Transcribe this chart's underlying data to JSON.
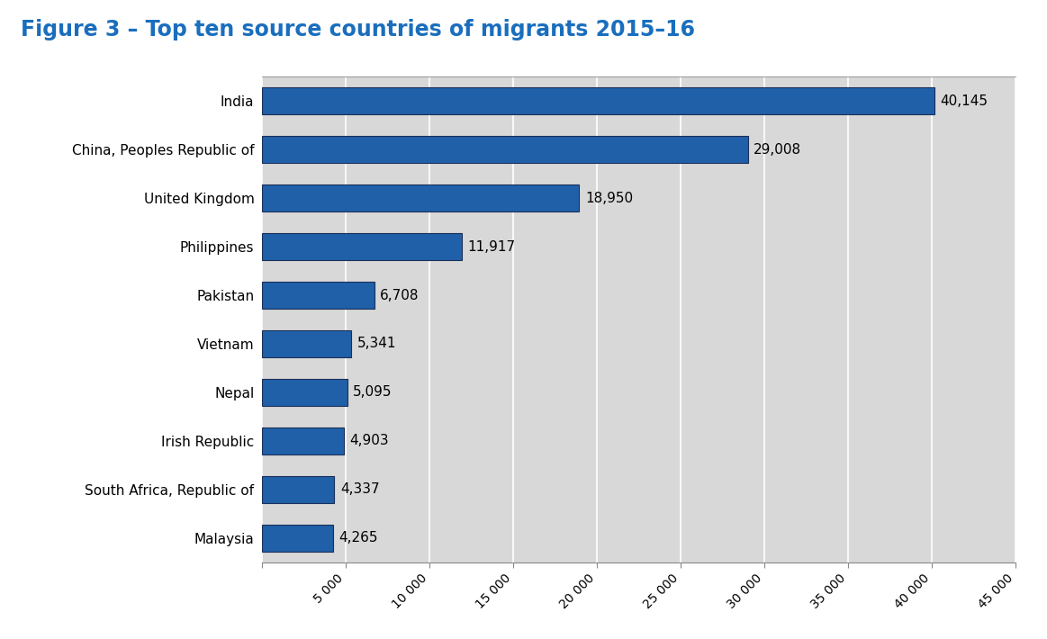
{
  "title": "Figure 3 – Top ten source countries of migrants 2015–16",
  "categories": [
    "Malaysia",
    "South Africa, Republic of",
    "Irish Republic",
    "Nepal",
    "Vietnam",
    "Pakistan",
    "Philippines",
    "United Kingdom",
    "China, Peoples Republic of",
    "India"
  ],
  "values": [
    4265,
    4337,
    4903,
    5095,
    5341,
    6708,
    11917,
    18950,
    29008,
    40145
  ],
  "bar_color": "#2060a8",
  "bar_edge_color": "#1a2f5a",
  "fig_background_color": "#ffffff",
  "plot_bg_color": "#d8d8d8",
  "title_color": "#1a6ebd",
  "title_fontsize": 17,
  "label_fontsize": 11,
  "value_fontsize": 11,
  "xtick_fontsize": 10,
  "xlim": [
    0,
    45000
  ],
  "xtick_values": [
    0,
    5000,
    10000,
    15000,
    20000,
    25000,
    30000,
    35000,
    40000,
    45000
  ],
  "xtick_labels": [
    "",
    "5 000",
    "10 000",
    "15 000",
    "20 000",
    "25 000",
    "30 000",
    "35 000",
    "40 000",
    "45 000"
  ],
  "bar_height": 0.55,
  "value_label_comma": true
}
